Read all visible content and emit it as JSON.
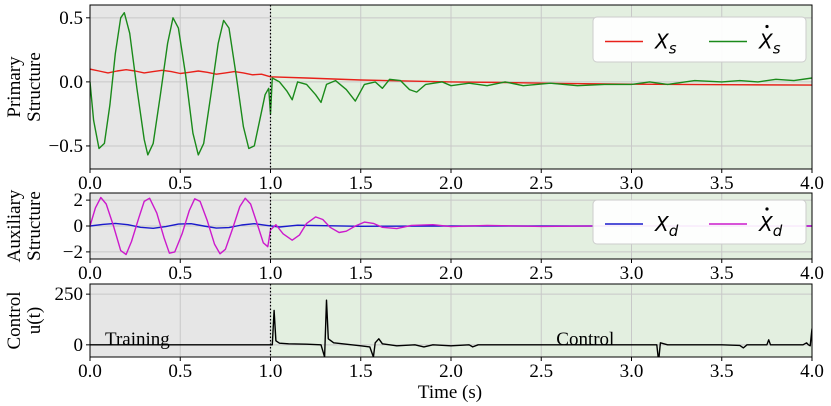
{
  "chart_data": {
    "type": "line",
    "xlabel": "Time (s)",
    "x_ticks": [
      "0.0",
      "0.5",
      "1.0",
      "1.5",
      "2.0",
      "2.5",
      "3.0",
      "3.5",
      "4.0"
    ],
    "xlim": [
      0,
      4
    ],
    "training_end": 1.0,
    "colors": {
      "training_bg": "#e6e6e6",
      "control_bg": "#e3efe0",
      "grid": "#c8c8c8"
    },
    "panels": [
      {
        "id": "primary",
        "ylabel_lines": [
          "Primary",
          "Structure"
        ],
        "ylim": [
          -0.68,
          0.6
        ],
        "y_ticks": [
          {
            "v": 0.5,
            "label": "0.5"
          },
          {
            "v": 0.0,
            "label": "0.0"
          },
          {
            "v": -0.5,
            "label": "−0.5"
          }
        ],
        "legend": [
          {
            "label": "X",
            "sub": "s",
            "dot": false,
            "color": "#e8211a"
          },
          {
            "label": "X",
            "sub": "s",
            "dot": true,
            "color": "#1a8a1a"
          }
        ],
        "series": [
          {
            "key": "xs",
            "color": "#e8211a",
            "points": [
              [
                0,
                0.1
              ],
              [
                0.05,
                0.085
              ],
              [
                0.1,
                0.07
              ],
              [
                0.15,
                0.085
              ],
              [
                0.2,
                0.095
              ],
              [
                0.25,
                0.085
              ],
              [
                0.3,
                0.07
              ],
              [
                0.35,
                0.08
              ],
              [
                0.4,
                0.09
              ],
              [
                0.45,
                0.08
              ],
              [
                0.5,
                0.065
              ],
              [
                0.55,
                0.075
              ],
              [
                0.6,
                0.085
              ],
              [
                0.65,
                0.075
              ],
              [
                0.7,
                0.06
              ],
              [
                0.75,
                0.07
              ],
              [
                0.8,
                0.08
              ],
              [
                0.85,
                0.07
              ],
              [
                0.9,
                0.055
              ],
              [
                0.95,
                0.06
              ],
              [
                1.0,
                0.04
              ],
              [
                1.2,
                0.03
              ],
              [
                1.5,
                0.015
              ],
              [
                1.8,
                0.005
              ],
              [
                2.0,
                0.0
              ],
              [
                2.3,
                -0.005
              ],
              [
                2.6,
                -0.012
              ],
              [
                3.0,
                -0.018
              ],
              [
                3.5,
                -0.022
              ],
              [
                4.0,
                -0.025
              ]
            ]
          },
          {
            "key": "xs_dot",
            "color": "#1a8a1a",
            "points": [
              [
                0,
                0
              ],
              [
                0.02,
                -0.3
              ],
              [
                0.05,
                -0.52
              ],
              [
                0.08,
                -0.48
              ],
              [
                0.11,
                -0.18
              ],
              [
                0.14,
                0.22
              ],
              [
                0.17,
                0.5
              ],
              [
                0.19,
                0.54
              ],
              [
                0.22,
                0.38
              ],
              [
                0.26,
                -0.05
              ],
              [
                0.3,
                -0.45
              ],
              [
                0.32,
                -0.57
              ],
              [
                0.35,
                -0.48
              ],
              [
                0.39,
                -0.1
              ],
              [
                0.43,
                0.3
              ],
              [
                0.46,
                0.5
              ],
              [
                0.49,
                0.42
              ],
              [
                0.53,
                0.05
              ],
              [
                0.57,
                -0.4
              ],
              [
                0.6,
                -0.57
              ],
              [
                0.63,
                -0.48
              ],
              [
                0.67,
                -0.1
              ],
              [
                0.71,
                0.3
              ],
              [
                0.74,
                0.48
              ],
              [
                0.77,
                0.42
              ],
              [
                0.81,
                0.05
              ],
              [
                0.85,
                -0.35
              ],
              [
                0.88,
                -0.52
              ],
              [
                0.91,
                -0.5
              ],
              [
                0.94,
                -0.3
              ],
              [
                0.97,
                -0.1
              ],
              [
                0.99,
                -0.05
              ],
              [
                1.0,
                -0.25
              ],
              [
                1.01,
                0.03
              ],
              [
                1.05,
                0.0
              ],
              [
                1.09,
                -0.07
              ],
              [
                1.12,
                -0.14
              ],
              [
                1.15,
                0.0
              ],
              [
                1.2,
                -0.02
              ],
              [
                1.25,
                -0.1
              ],
              [
                1.28,
                -0.16
              ],
              [
                1.31,
                -0.02
              ],
              [
                1.36,
                0.01
              ],
              [
                1.42,
                -0.06
              ],
              [
                1.47,
                -0.15
              ],
              [
                1.52,
                -0.02
              ],
              [
                1.58,
                0.0
              ],
              [
                1.62,
                -0.05
              ],
              [
                1.66,
                0.02
              ],
              [
                1.72,
                0.01
              ],
              [
                1.77,
                -0.06
              ],
              [
                1.81,
                -0.08
              ],
              [
                1.86,
                -0.02
              ],
              [
                1.95,
                0.0
              ],
              [
                2.0,
                -0.03
              ],
              [
                2.1,
                -0.01
              ],
              [
                2.2,
                -0.03
              ],
              [
                2.3,
                0.0
              ],
              [
                2.4,
                -0.03
              ],
              [
                2.55,
                -0.01
              ],
              [
                2.7,
                -0.03
              ],
              [
                2.85,
                -0.02
              ],
              [
                3.0,
                -0.02
              ],
              [
                3.1,
                0.0
              ],
              [
                3.2,
                -0.02
              ],
              [
                3.35,
                0.01
              ],
              [
                3.5,
                0.0
              ],
              [
                3.6,
                0.01
              ],
              [
                3.7,
                0.0
              ],
              [
                3.8,
                0.02
              ],
              [
                3.9,
                0.01
              ],
              [
                4.0,
                0.03
              ]
            ]
          }
        ]
      },
      {
        "id": "auxiliary",
        "ylabel_lines": [
          "Auxiliary",
          "Structure"
        ],
        "ylim": [
          -2.55,
          2.55
        ],
        "y_ticks": [
          {
            "v": 2,
            "label": "2"
          },
          {
            "v": 0,
            "label": "0"
          },
          {
            "v": -2,
            "label": "−2"
          }
        ],
        "legend": [
          {
            "label": "X",
            "sub": "d",
            "dot": false,
            "color": "#1a1acc"
          },
          {
            "label": "X",
            "sub": "d",
            "dot": true,
            "color": "#cc1acc"
          }
        ],
        "series": [
          {
            "key": "xd",
            "color": "#1a1acc",
            "points": [
              [
                0,
                0
              ],
              [
                0.07,
                0.12
              ],
              [
                0.14,
                0.2
              ],
              [
                0.21,
                0.1
              ],
              [
                0.28,
                -0.1
              ],
              [
                0.35,
                -0.18
              ],
              [
                0.42,
                -0.05
              ],
              [
                0.49,
                0.15
              ],
              [
                0.56,
                0.18
              ],
              [
                0.63,
                0.0
              ],
              [
                0.7,
                -0.16
              ],
              [
                0.77,
                -0.12
              ],
              [
                0.84,
                0.08
              ],
              [
                0.91,
                0.18
              ],
              [
                0.98,
                0.05
              ],
              [
                1.05,
                -0.08
              ],
              [
                1.15,
                0.06
              ],
              [
                1.3,
                0.02
              ],
              [
                1.5,
                -0.02
              ],
              [
                2.0,
                0.0
              ],
              [
                4.0,
                0.0
              ]
            ]
          },
          {
            "key": "xd_dot",
            "color": "#cc1acc",
            "points": [
              [
                0,
                0
              ],
              [
                0.03,
                1.4
              ],
              [
                0.06,
                2.2
              ],
              [
                0.09,
                1.7
              ],
              [
                0.13,
                0.0
              ],
              [
                0.17,
                -1.9
              ],
              [
                0.2,
                -2.2
              ],
              [
                0.23,
                -1.2
              ],
              [
                0.27,
                0.6
              ],
              [
                0.3,
                1.9
              ],
              [
                0.33,
                2.15
              ],
              [
                0.37,
                1.0
              ],
              [
                0.41,
                -0.9
              ],
              [
                0.44,
                -2.1
              ],
              [
                0.47,
                -2.0
              ],
              [
                0.51,
                -0.6
              ],
              [
                0.55,
                1.2
              ],
              [
                0.58,
                2.1
              ],
              [
                0.61,
                1.9
              ],
              [
                0.65,
                0.4
              ],
              [
                0.69,
                -1.4
              ],
              [
                0.72,
                -2.15
              ],
              [
                0.75,
                -1.8
              ],
              [
                0.79,
                -0.2
              ],
              [
                0.83,
                1.5
              ],
              [
                0.86,
                2.15
              ],
              [
                0.89,
                1.7
              ],
              [
                0.93,
                0.0
              ],
              [
                0.96,
                -1.3
              ],
              [
                0.985,
                -1.6
              ],
              [
                1.0,
                -0.3
              ],
              [
                1.03,
                0.1
              ],
              [
                1.07,
                -0.6
              ],
              [
                1.12,
                -1.1
              ],
              [
                1.16,
                -0.7
              ],
              [
                1.2,
                0.2
              ],
              [
                1.25,
                0.7
              ],
              [
                1.29,
                0.5
              ],
              [
                1.33,
                -0.1
              ],
              [
                1.38,
                -0.5
              ],
              [
                1.42,
                -0.4
              ],
              [
                1.47,
                0.0
              ],
              [
                1.52,
                0.3
              ],
              [
                1.57,
                0.2
              ],
              [
                1.62,
                -0.1
              ],
              [
                1.7,
                -0.2
              ],
              [
                1.78,
                0.05
              ],
              [
                1.9,
                0.1
              ],
              [
                2.0,
                -0.05
              ],
              [
                2.2,
                0.05
              ],
              [
                2.5,
                -0.03
              ],
              [
                3.0,
                0.02
              ],
              [
                3.5,
                -0.02
              ],
              [
                4.0,
                0.0
              ]
            ]
          }
        ]
      },
      {
        "id": "control",
        "ylabel_lines": [
          "Control",
          "u(t)"
        ],
        "ylim": [
          -60,
          300
        ],
        "y_ticks": [
          {
            "v": 250,
            "label": "250"
          },
          {
            "v": 0,
            "label": "0"
          }
        ],
        "annotations": [
          {
            "text": "Training",
            "x": 0.05,
            "y": 20
          },
          {
            "text": "Control",
            "x": 2.55,
            "y": 20
          }
        ],
        "series": [
          {
            "key": "u",
            "color": "#000000",
            "points": [
              [
                0,
                0
              ],
              [
                1.0,
                0
              ],
              [
                1.01,
                0
              ],
              [
                1.02,
                170
              ],
              [
                1.03,
                20
              ],
              [
                1.05,
                8
              ],
              [
                1.1,
                5
              ],
              [
                1.2,
                3
              ],
              [
                1.28,
                0
              ],
              [
                1.3,
                -60
              ],
              [
                1.31,
                220
              ],
              [
                1.32,
                30
              ],
              [
                1.35,
                10
              ],
              [
                1.4,
                5
              ],
              [
                1.45,
                0
              ],
              [
                1.5,
                -5
              ],
              [
                1.55,
                -10
              ],
              [
                1.57,
                -60
              ],
              [
                1.58,
                10
              ],
              [
                1.6,
                30
              ],
              [
                1.62,
                5
              ],
              [
                1.7,
                -5
              ],
              [
                1.8,
                0
              ],
              [
                1.85,
                -10
              ],
              [
                1.9,
                0
              ],
              [
                2.0,
                -5
              ],
              [
                2.1,
                0
              ],
              [
                2.12,
                -10
              ],
              [
                2.15,
                0
              ],
              [
                2.5,
                0
              ],
              [
                3.0,
                0
              ],
              [
                3.14,
                0
              ],
              [
                3.15,
                -80
              ],
              [
                3.16,
                10
              ],
              [
                3.2,
                0
              ],
              [
                3.5,
                0
              ],
              [
                3.6,
                -3
              ],
              [
                3.62,
                -15
              ],
              [
                3.64,
                0
              ],
              [
                3.75,
                0
              ],
              [
                3.76,
                25
              ],
              [
                3.77,
                0
              ],
              [
                3.95,
                0
              ],
              [
                3.97,
                10
              ],
              [
                3.98,
                0
              ],
              [
                3.99,
                -5
              ],
              [
                4.0,
                80
              ]
            ]
          }
        ]
      }
    ]
  }
}
